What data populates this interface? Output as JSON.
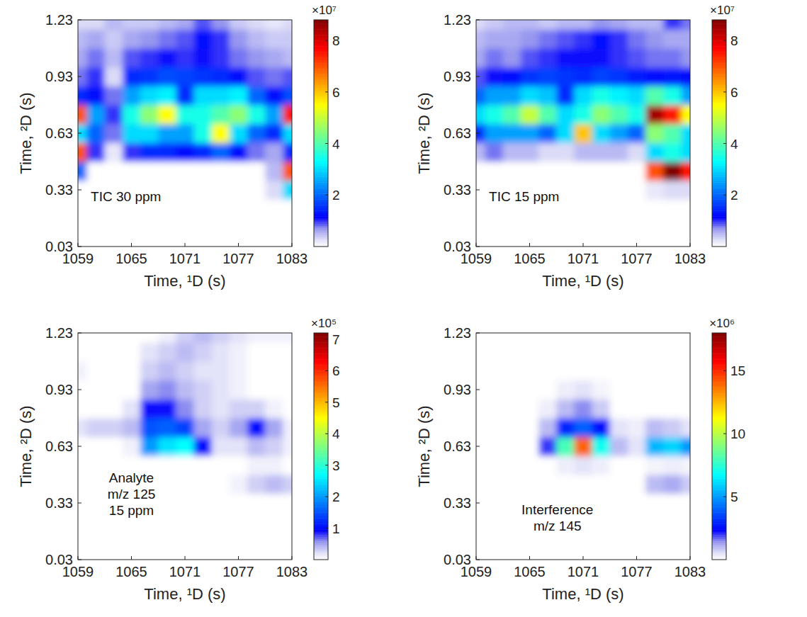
{
  "chart_data": [
    {
      "type": "heatmap",
      "annotation": [
        "TIC 30 ppm"
      ],
      "x_label": "Time, ¹D (s)",
      "y_label": "Time, ²D (s)",
      "xlim": [
        1059,
        1083
      ],
      "ylim": [
        0.03,
        1.23
      ],
      "xticks": [
        1059,
        1065,
        1071,
        1077,
        1083
      ],
      "yticks": [
        0.03,
        0.33,
        0.63,
        0.93,
        1.23
      ],
      "colorbar_lim": [
        0,
        8.8
      ],
      "colorbar_ticks": [
        2,
        4,
        6,
        8
      ],
      "colorbar_label": "×10⁷",
      "x": [
        1059,
        1061,
        1063,
        1065,
        1067,
        1069,
        1071,
        1073,
        1075,
        1077,
        1079,
        1081,
        1083
      ],
      "y": [
        0.03,
        0.13,
        0.23,
        0.33,
        0.43,
        0.53,
        0.63,
        0.73,
        0.83,
        0.93,
        1.03,
        1.13,
        1.23
      ],
      "values": [
        [
          0,
          0,
          0,
          0,
          0,
          0,
          0,
          0,
          0,
          0,
          0,
          0,
          0
        ],
        [
          0,
          0,
          0,
          0,
          0,
          0,
          0,
          0,
          0,
          0,
          0,
          0,
          0
        ],
        [
          0,
          0,
          0,
          0,
          0,
          0,
          0,
          0,
          0,
          0,
          0,
          0,
          0
        ],
        [
          0,
          0,
          0,
          0,
          0,
          0,
          0,
          0,
          0,
          0,
          0,
          0.3,
          3.0
        ],
        [
          2.0,
          0,
          0,
          0,
          0,
          0,
          0,
          0,
          0,
          0,
          0,
          0.5,
          7.0
        ],
        [
          7.0,
          1.0,
          0.2,
          1.0,
          1.5,
          1.5,
          1.2,
          1.5,
          2.0,
          1.2,
          0.8,
          0.6,
          1.5
        ],
        [
          3.0,
          2.0,
          0.8,
          3.0,
          3.0,
          2.5,
          2.5,
          3.5,
          5.5,
          3.0,
          2.0,
          1.5,
          3.0
        ],
        [
          7.0,
          2.5,
          1.0,
          3.5,
          4.5,
          5.5,
          3.5,
          3.5,
          4.0,
          4.5,
          3.5,
          2.5,
          7.5
        ],
        [
          1.5,
          1.2,
          0.8,
          2.5,
          3.0,
          3.2,
          1.5,
          3.0,
          3.0,
          3.2,
          2.0,
          1.2,
          1.8
        ],
        [
          0.8,
          1.0,
          0.3,
          1.5,
          1.6,
          1.8,
          1.7,
          1.6,
          1.5,
          1.2,
          0.9,
          0.8,
          0.9
        ],
        [
          0.6,
          0.8,
          0.5,
          0.9,
          1.0,
          1.1,
          1.0,
          1.1,
          1.0,
          0.8,
          0.7,
          0.6,
          0.5
        ],
        [
          0.5,
          0.6,
          0.4,
          0.6,
          0.7,
          0.8,
          0.9,
          1.2,
          1.0,
          0.7,
          0.5,
          0.4,
          0.4
        ],
        [
          0.3,
          0.3,
          0.5,
          0.4,
          0.4,
          0.5,
          0.6,
          0.9,
          0.7,
          0.4,
          0.3,
          0.2,
          0.3
        ]
      ]
    },
    {
      "type": "heatmap",
      "annotation": [
        "TIC 15 ppm"
      ],
      "x_label": "Time, ¹D (s)",
      "y_label": "Time, ²D (s)",
      "xlim": [
        1059,
        1083
      ],
      "ylim": [
        0.03,
        1.23
      ],
      "xticks": [
        1059,
        1065,
        1071,
        1077,
        1083
      ],
      "yticks": [
        0.03,
        0.33,
        0.63,
        0.93,
        1.23
      ],
      "colorbar_lim": [
        0,
        8.8
      ],
      "colorbar_ticks": [
        2,
        4,
        6,
        8
      ],
      "colorbar_label": "×10⁷",
      "x": [
        1059,
        1061,
        1063,
        1065,
        1067,
        1069,
        1071,
        1073,
        1075,
        1077,
        1079,
        1081,
        1083
      ],
      "y": [
        0.03,
        0.13,
        0.23,
        0.33,
        0.43,
        0.53,
        0.63,
        0.73,
        0.83,
        0.93,
        1.03,
        1.13,
        1.23
      ],
      "values": [
        [
          0,
          0,
          0,
          0,
          0,
          0,
          0,
          0,
          0,
          0,
          0,
          0,
          0
        ],
        [
          0,
          0,
          0,
          0,
          0,
          0,
          0,
          0,
          0,
          0,
          0,
          0,
          0
        ],
        [
          0,
          0,
          0,
          0,
          0,
          0,
          0,
          0,
          0,
          0,
          0,
          0,
          0
        ],
        [
          0,
          0,
          0,
          0,
          0,
          0,
          0,
          0,
          0,
          0,
          0.2,
          0.3,
          0.3
        ],
        [
          0,
          0,
          0,
          0,
          0,
          0,
          0,
          0,
          0,
          0,
          7.0,
          8.8,
          7.5
        ],
        [
          0.5,
          0.8,
          0.5,
          0.5,
          0.3,
          0.3,
          0.5,
          0.5,
          0.5,
          0.3,
          3.0,
          3.5,
          3.0
        ],
        [
          1.5,
          2.5,
          2.5,
          2.5,
          2.0,
          3.0,
          6.0,
          3.0,
          2.5,
          2.0,
          4.5,
          4.0,
          3.0
        ],
        [
          3.0,
          3.5,
          4.0,
          5.0,
          4.0,
          3.0,
          3.5,
          4.5,
          4.0,
          3.5,
          8.5,
          7.5,
          5.5
        ],
        [
          2.0,
          2.5,
          2.5,
          3.0,
          2.8,
          1.5,
          3.0,
          3.5,
          3.2,
          3.0,
          4.0,
          3.5,
          2.5
        ],
        [
          0.9,
          1.1,
          1.2,
          1.6,
          1.7,
          1.6,
          1.5,
          1.7,
          1.6,
          1.4,
          1.2,
          1.3,
          1.2
        ],
        [
          0.6,
          0.8,
          0.7,
          0.9,
          1.0,
          1.1,
          1.1,
          1.1,
          1.0,
          0.9,
          0.8,
          0.8,
          0.7
        ],
        [
          0.5,
          0.6,
          0.6,
          0.7,
          0.8,
          0.9,
          1.0,
          1.2,
          1.0,
          0.8,
          0.7,
          0.6,
          0.6
        ],
        [
          0.3,
          0.4,
          0.5,
          0.5,
          0.4,
          0.5,
          0.5,
          0.7,
          0.6,
          0.5,
          0.5,
          1.0,
          0.8
        ]
      ]
    },
    {
      "type": "heatmap",
      "annotation": [
        "Analyte",
        "m/z 125",
        "15 ppm"
      ],
      "x_label": "Time, ¹D (s)",
      "y_label": "Time, ²D (s)",
      "xlim": [
        1059,
        1083
      ],
      "ylim": [
        0.03,
        1.23
      ],
      "xticks": [
        1059,
        1065,
        1071,
        1077,
        1083
      ],
      "yticks": [
        0.03,
        0.33,
        0.63,
        0.93,
        1.23
      ],
      "colorbar_lim": [
        0,
        7.2
      ],
      "colorbar_ticks": [
        1,
        2,
        3,
        4,
        5,
        6,
        7
      ],
      "colorbar_label": "×10⁵",
      "x": [
        1059,
        1061,
        1063,
        1065,
        1067,
        1069,
        1071,
        1073,
        1075,
        1077,
        1079,
        1081,
        1083
      ],
      "y": [
        0.03,
        0.13,
        0.23,
        0.33,
        0.43,
        0.53,
        0.63,
        0.73,
        0.83,
        0.93,
        1.03,
        1.13,
        1.23
      ],
      "values": [
        [
          0,
          0,
          0,
          0,
          0,
          0,
          0,
          0,
          0,
          0,
          0,
          0,
          0
        ],
        [
          0,
          0,
          0,
          0,
          0,
          0,
          0,
          0,
          0,
          0,
          0,
          0,
          0
        ],
        [
          0,
          0,
          0,
          0,
          0,
          0,
          0,
          0,
          0,
          0,
          0,
          0,
          0
        ],
        [
          0,
          0,
          0,
          0,
          0,
          0,
          0,
          0,
          0,
          0,
          0,
          0,
          0
        ],
        [
          0,
          0,
          0,
          0,
          0,
          0,
          0,
          0,
          0,
          0.1,
          0.3,
          0.4,
          0.3
        ],
        [
          0,
          0,
          0,
          0,
          0,
          0,
          0,
          0,
          0,
          0,
          0.1,
          0.1,
          0
        ],
        [
          0,
          0,
          0,
          0.1,
          2.0,
          2.5,
          2.7,
          1.0,
          0.2,
          0.2,
          0.4,
          0.3,
          0.1
        ],
        [
          0.2,
          0.3,
          0.3,
          0.4,
          1.5,
          1.6,
          1.4,
          0.5,
          0.3,
          0.5,
          1.0,
          0.5,
          0.1
        ],
        [
          0,
          0,
          0,
          0.2,
          0.9,
          0.9,
          0.6,
          0.3,
          0.2,
          0.3,
          0.3,
          0.1,
          0
        ],
        [
          0,
          0,
          0,
          0,
          0.5,
          0.6,
          0.4,
          0.3,
          0.2,
          0.1,
          0,
          0,
          0
        ],
        [
          0.1,
          0,
          0,
          0,
          0.3,
          0.4,
          0.3,
          0.2,
          0.2,
          0.1,
          0,
          0,
          0
        ],
        [
          0,
          0,
          0,
          0,
          0.2,
          0.3,
          0.4,
          0.3,
          0.2,
          0.1,
          0,
          0,
          0
        ],
        [
          0,
          0,
          0,
          0,
          0,
          0.1,
          0.3,
          0.4,
          0.3,
          0.2,
          0.1,
          0.1,
          0.1
        ]
      ]
    },
    {
      "type": "heatmap",
      "annotation": [
        "Interference",
        "m/z 145"
      ],
      "x_label": "Time, ¹D (s)",
      "y_label": "Time, ²D (s)",
      "xlim": [
        1059,
        1083
      ],
      "ylim": [
        0.03,
        1.23
      ],
      "xticks": [
        1059,
        1065,
        1071,
        1077,
        1083
      ],
      "yticks": [
        0.03,
        0.33,
        0.63,
        0.93,
        1.23
      ],
      "colorbar_lim": [
        0,
        18
      ],
      "colorbar_ticks": [
        5,
        10,
        15
      ],
      "colorbar_label": "×10⁶",
      "x": [
        1059,
        1061,
        1063,
        1065,
        1067,
        1069,
        1071,
        1073,
        1075,
        1077,
        1079,
        1081,
        1083
      ],
      "y": [
        0.03,
        0.13,
        0.23,
        0.33,
        0.43,
        0.53,
        0.63,
        0.73,
        0.83,
        0.93,
        1.03,
        1.13,
        1.23
      ],
      "values": [
        [
          0,
          0,
          0,
          0,
          0,
          0,
          0,
          0,
          0,
          0,
          0,
          0,
          0
        ],
        [
          0,
          0,
          0,
          0,
          0,
          0,
          0,
          0,
          0,
          0,
          0,
          0,
          0
        ],
        [
          0,
          0,
          0,
          0,
          0,
          0,
          0,
          0,
          0,
          0,
          0,
          0,
          0
        ],
        [
          0,
          0,
          0,
          0,
          0,
          0,
          0,
          0,
          0,
          0,
          0,
          0,
          0
        ],
        [
          0,
          0,
          0,
          0,
          0,
          0,
          0,
          0,
          0,
          0,
          1.0,
          1.2,
          0.8
        ],
        [
          0,
          0,
          0,
          0,
          0,
          0.3,
          0.5,
          0.3,
          0,
          0,
          0.2,
          0.3,
          0.2
        ],
        [
          0,
          0,
          0,
          0,
          2.0,
          8.0,
          14.0,
          7.0,
          1.0,
          0.5,
          5.5,
          6.0,
          5.0
        ],
        [
          0,
          0,
          0,
          0,
          1.0,
          3.0,
          4.0,
          2.5,
          0.5,
          0.3,
          1.0,
          0.8,
          0.5
        ],
        [
          0,
          0,
          0,
          0,
          0.3,
          1.0,
          1.5,
          0.8,
          0,
          0,
          0,
          0,
          0
        ],
        [
          0,
          0,
          0,
          0,
          0,
          0.3,
          0.5,
          0.2,
          0,
          0,
          0,
          0,
          0
        ],
        [
          0,
          0,
          0,
          0,
          0,
          0,
          0,
          0,
          0,
          0,
          0,
          0,
          0
        ],
        [
          0,
          0,
          0,
          0,
          0,
          0,
          0,
          0,
          0,
          0,
          0,
          0,
          0
        ],
        [
          0,
          0,
          0,
          0,
          0,
          0,
          0,
          0,
          0,
          0,
          0,
          0,
          0
        ]
      ]
    }
  ]
}
